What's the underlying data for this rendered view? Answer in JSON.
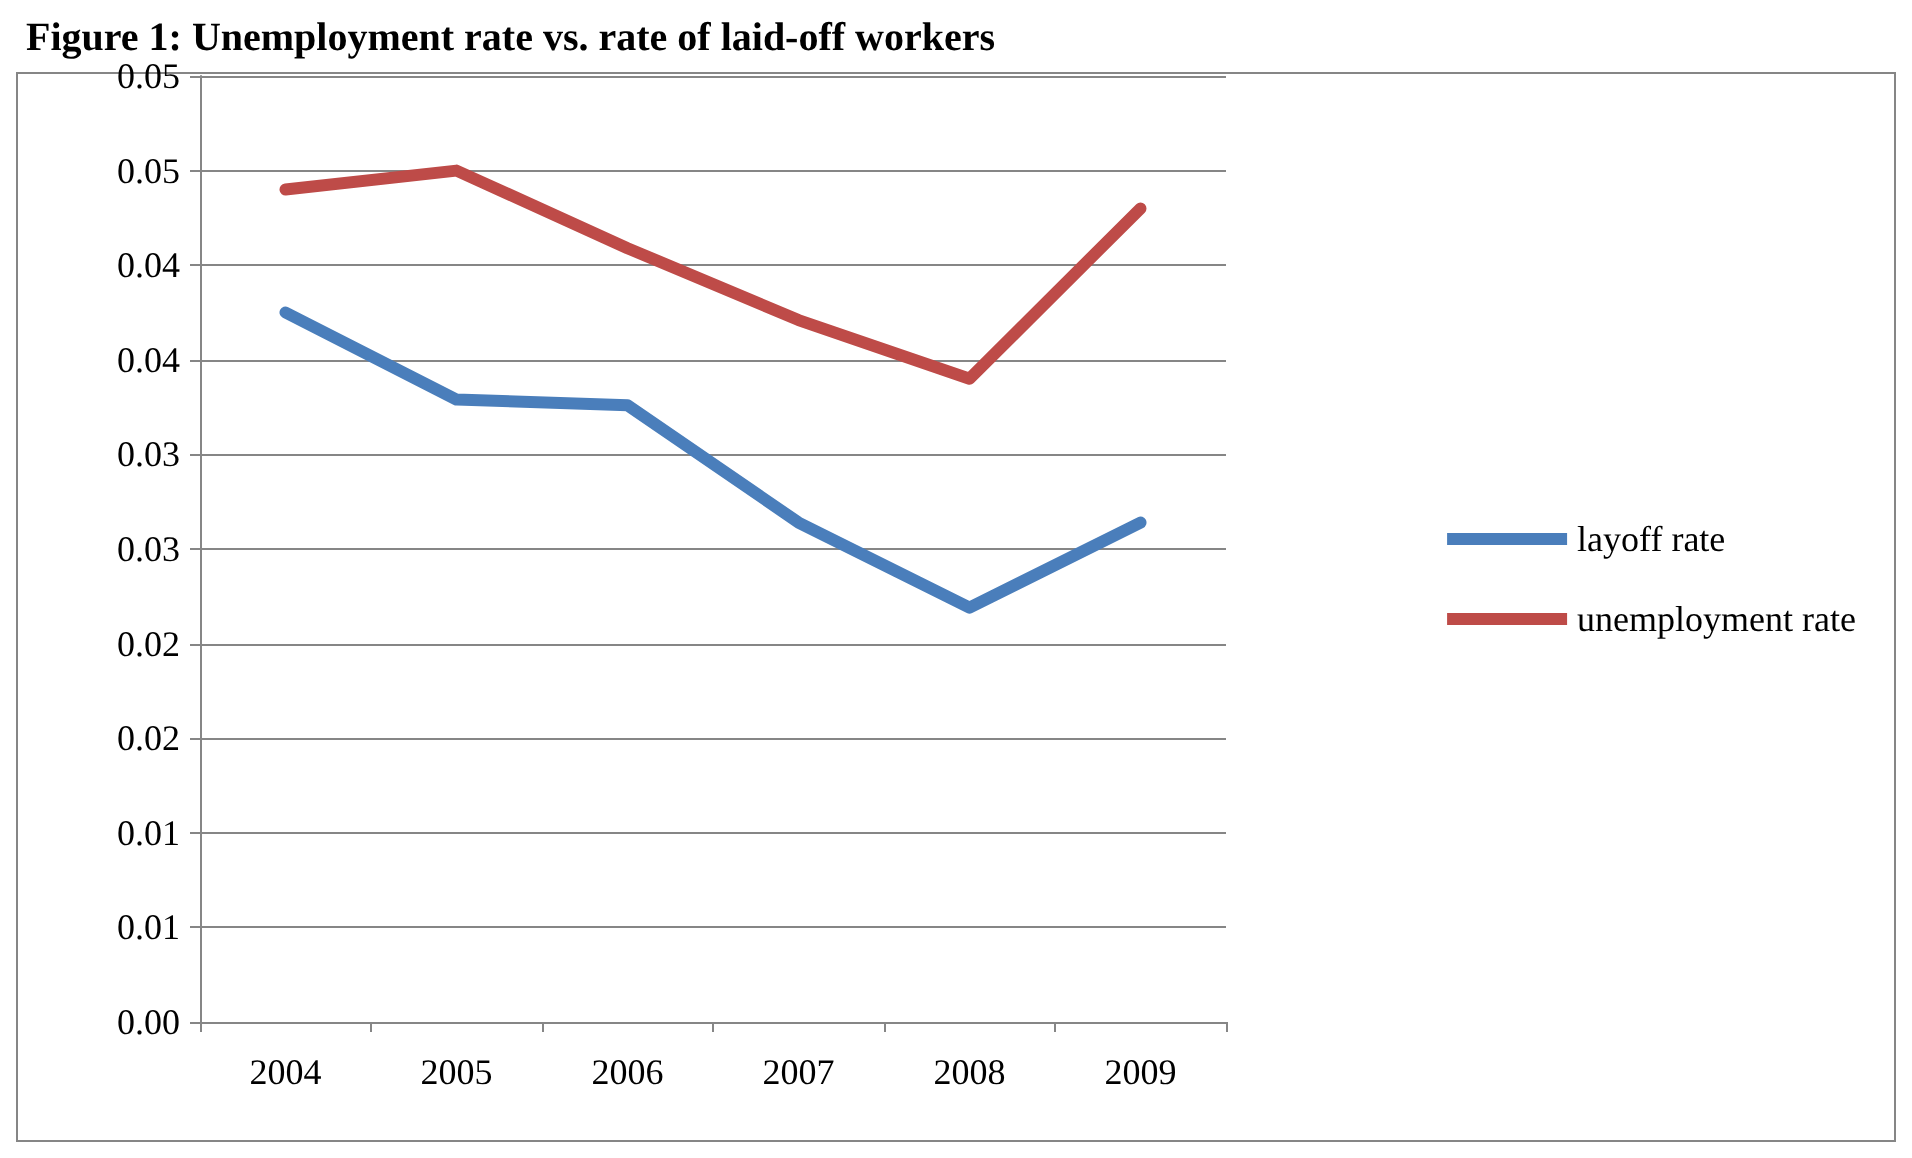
{
  "chart_data": {
    "type": "line",
    "title": "Figure 1: Unemployment rate vs. rate of laid-off workers",
    "categories": [
      "2004",
      "2005",
      "2006",
      "2007",
      "2008",
      "2009"
    ],
    "series": [
      {
        "name": "layoff rate",
        "color": "#4a7ebb",
        "values": [
          0.0375,
          0.0329,
          0.0326,
          0.0264,
          0.0219,
          0.0264
        ]
      },
      {
        "name": "unemployment rate",
        "color": "#be4b48",
        "values": [
          0.044,
          0.045,
          0.0409,
          0.0371,
          0.034,
          0.043
        ]
      }
    ],
    "ylim": [
      0,
      0.05
    ],
    "yticks": [
      {
        "value": 0,
        "label": "0.00"
      },
      {
        "value": 0.005,
        "label": "0.01"
      },
      {
        "value": 0.01,
        "label": "0.01"
      },
      {
        "value": 0.015,
        "label": "0.02"
      },
      {
        "value": 0.02,
        "label": "0.02"
      },
      {
        "value": 0.025,
        "label": "0.03"
      },
      {
        "value": 0.03,
        "label": "0.03"
      },
      {
        "value": 0.035,
        "label": "0.04"
      },
      {
        "value": 0.04,
        "label": "0.04"
      },
      {
        "value": 0.045,
        "label": "0.05"
      },
      {
        "value": 0.05,
        "label": "0.05"
      }
    ],
    "grid": "y",
    "legend": "right",
    "marker": "none",
    "line_style": "solid"
  }
}
